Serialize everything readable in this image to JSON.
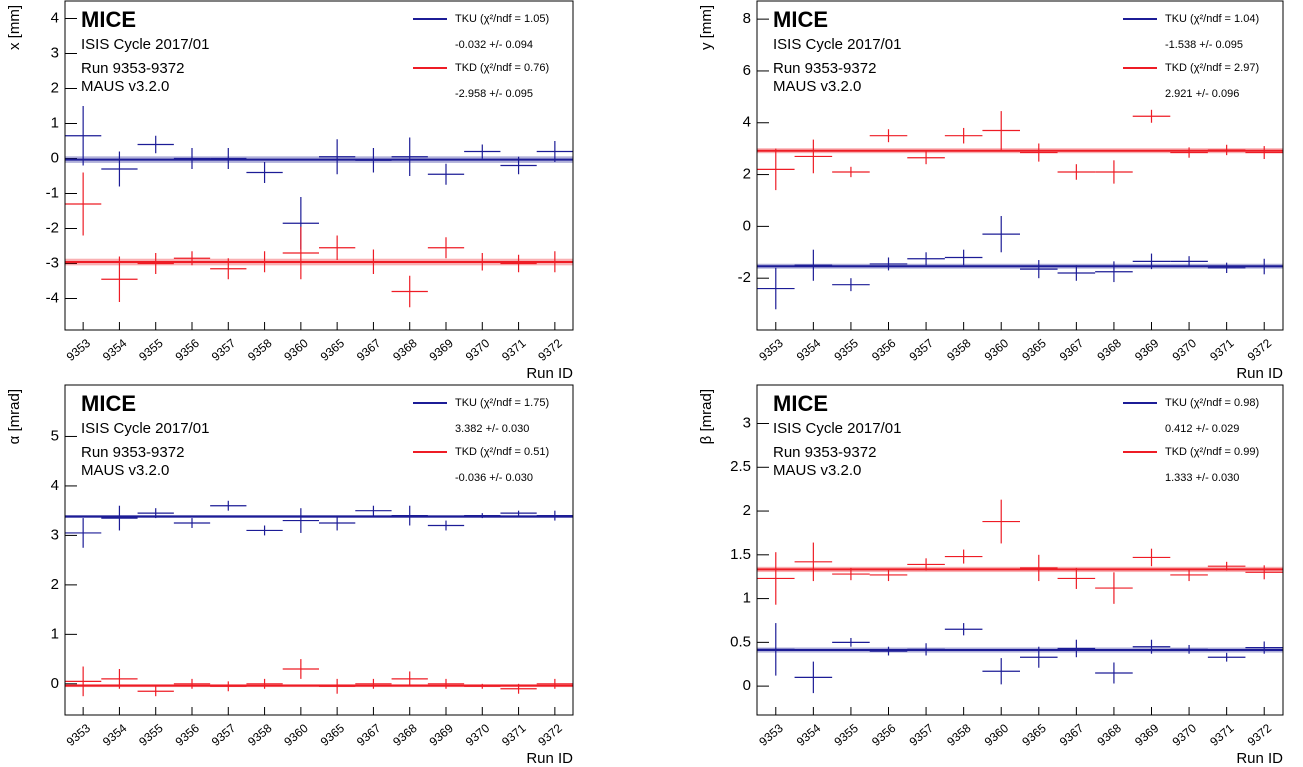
{
  "chart_data": [
    {
      "type": "errorbar",
      "y_label": "x  [mm]",
      "x_label": "Run ID",
      "annotations": [
        "MICE",
        "ISIS Cycle 2017/01",
        "Run 9353-9372",
        "MAUS v3.2.0"
      ],
      "categories": [
        "9353",
        "9354",
        "9355",
        "9356",
        "9357",
        "9358",
        "9360",
        "9365",
        "9367",
        "9368",
        "9369",
        "9370",
        "9371",
        "9372"
      ],
      "ylim": [
        -4.9,
        4.5
      ],
      "yticks": [
        -4,
        -3,
        -2,
        -1,
        0,
        1,
        2,
        3,
        4
      ],
      "series": [
        {
          "name": "TKU (χ²/ndf = 1.05)",
          "color": "#1c1c96",
          "values": [
            0.65,
            -0.3,
            0.4,
            0,
            0,
            -0.4,
            -1.85,
            0.05,
            -0.05,
            0.05,
            -0.45,
            0.2,
            -0.2,
            0.2
          ],
          "errors": [
            0.85,
            0.5,
            0.25,
            0.3,
            0.3,
            0.3,
            0.75,
            0.5,
            0.35,
            0.55,
            0.3,
            0.2,
            0.25,
            0.3
          ],
          "fit": {
            "value": -0.032,
            "error": 0.094,
            "label": "-0.032 +/- 0.094"
          }
        },
        {
          "name": "TKD (χ²/ndf = 0.76)",
          "color": "#ee1c25",
          "values": [
            -1.3,
            -3.45,
            -3.0,
            -2.85,
            -3.15,
            -2.95,
            -2.7,
            -2.55,
            -2.95,
            -3.8,
            -2.55,
            -2.95,
            -3.0,
            -2.95
          ],
          "errors": [
            0.9,
            0.65,
            0.3,
            0.2,
            0.3,
            0.3,
            0.75,
            0.35,
            0.35,
            0.45,
            0.3,
            0.25,
            0.25,
            0.3
          ],
          "fit": {
            "value": -2.958,
            "error": 0.095,
            "label": "-2.958 +/- 0.095"
          }
        }
      ]
    },
    {
      "type": "errorbar",
      "y_label": "y  [mm]",
      "x_label": "Run ID",
      "annotations": [
        "MICE",
        "ISIS Cycle 2017/01",
        "Run 9353-9372",
        "MAUS v3.2.0"
      ],
      "categories": [
        "9353",
        "9354",
        "9355",
        "9356",
        "9357",
        "9358",
        "9360",
        "9365",
        "9367",
        "9368",
        "9369",
        "9370",
        "9371",
        "9372"
      ],
      "ylim": [
        -4,
        8.7
      ],
      "yticks": [
        -2,
        0,
        2,
        4,
        6,
        8
      ],
      "series": [
        {
          "name": "TKU (χ²/ndf = 1.04)",
          "color": "#1c1c96",
          "values": [
            -2.4,
            -1.5,
            -2.25,
            -1.45,
            -1.25,
            -1.2,
            -0.3,
            -1.65,
            -1.8,
            -1.75,
            -1.35,
            -1.35,
            -1.6,
            -1.55
          ],
          "errors": [
            0.8,
            0.6,
            0.25,
            0.25,
            0.25,
            0.3,
            0.7,
            0.35,
            0.3,
            0.4,
            0.3,
            0.2,
            0.2,
            0.3
          ],
          "fit": {
            "value": -1.538,
            "error": 0.095,
            "label": "-1.538 +/- 0.095"
          }
        },
        {
          "name": "TKD (χ²/ndf = 2.97)",
          "color": "#ee1c25",
          "values": [
            2.2,
            2.7,
            2.1,
            3.5,
            2.65,
            3.5,
            3.7,
            2.85,
            2.1,
            2.1,
            4.25,
            2.85,
            2.95,
            2.85
          ],
          "errors": [
            0.8,
            0.65,
            0.2,
            0.25,
            0.25,
            0.3,
            0.75,
            0.35,
            0.3,
            0.45,
            0.25,
            0.2,
            0.2,
            0.25
          ],
          "fit": {
            "value": 2.921,
            "error": 0.096,
            "label": "2.921 +/- 0.096"
          }
        }
      ]
    },
    {
      "type": "errorbar",
      "y_label": "α  [mrad]",
      "x_label": "Run ID",
      "annotations": [
        "MICE",
        "ISIS Cycle 2017/01",
        "Run 9353-9372",
        "MAUS v3.2.0"
      ],
      "categories": [
        "9353",
        "9354",
        "9355",
        "9356",
        "9357",
        "9358",
        "9360",
        "9365",
        "9367",
        "9368",
        "9369",
        "9370",
        "9371",
        "9372"
      ],
      "ylim": [
        -0.63,
        6.04
      ],
      "yticks": [
        0,
        1,
        2,
        3,
        4,
        5
      ],
      "series": [
        {
          "name": "TKU (χ²/ndf = 1.75)",
          "color": "#1c1c96",
          "values": [
            3.05,
            3.35,
            3.45,
            3.25,
            3.6,
            3.1,
            3.3,
            3.25,
            3.5,
            3.4,
            3.2,
            3.4,
            3.45,
            3.4
          ],
          "errors": [
            0.3,
            0.25,
            0.1,
            0.1,
            0.1,
            0.1,
            0.25,
            0.15,
            0.1,
            0.2,
            0.1,
            0.05,
            0.05,
            0.1
          ],
          "fit": {
            "value": 3.382,
            "error": 0.03,
            "label": "3.382 +/- 0.030"
          }
        },
        {
          "name": "TKD (χ²/ndf = 0.51)",
          "color": "#ee1c25",
          "values": [
            0.05,
            0.1,
            -0.15,
            0,
            -0.05,
            0,
            0.3,
            -0.05,
            0,
            0.1,
            0,
            -0.05,
            -0.1,
            0
          ],
          "errors": [
            0.3,
            0.2,
            0.1,
            0.1,
            0.1,
            0.1,
            0.2,
            0.15,
            0.1,
            0.15,
            0.1,
            0.05,
            0.1,
            0.1
          ],
          "fit": {
            "value": -0.036,
            "error": 0.03,
            "label": "-0.036 +/- 0.030"
          }
        }
      ]
    },
    {
      "type": "errorbar",
      "y_label": "β  [mrad]",
      "x_label": "Run ID",
      "annotations": [
        "MICE",
        "ISIS Cycle 2017/01",
        "Run 9353-9372",
        "MAUS v3.2.0"
      ],
      "categories": [
        "9353",
        "9354",
        "9355",
        "9356",
        "9357",
        "9358",
        "9360",
        "9365",
        "9367",
        "9368",
        "9369",
        "9370",
        "9371",
        "9372"
      ],
      "ylim": [
        -0.33,
        3.44
      ],
      "yticks": [
        0,
        0.5,
        1,
        1.5,
        2,
        2.5,
        3
      ],
      "series": [
        {
          "name": "TKU (χ²/ndf = 0.98)",
          "color": "#1c1c96",
          "values": [
            0.42,
            0.1,
            0.5,
            0.4,
            0.42,
            0.65,
            0.17,
            0.33,
            0.43,
            0.15,
            0.45,
            0.42,
            0.33,
            0.44
          ],
          "errors": [
            0.3,
            0.18,
            0.05,
            0.05,
            0.07,
            0.07,
            0.15,
            0.12,
            0.1,
            0.12,
            0.08,
            0.05,
            0.05,
            0.07
          ],
          "fit": {
            "value": 0.412,
            "error": 0.029,
            "label": "0.412 +/- 0.029"
          }
        },
        {
          "name": "TKD (χ²/ndf = 0.99)",
          "color": "#ee1c25",
          "values": [
            1.23,
            1.42,
            1.28,
            1.27,
            1.39,
            1.48,
            1.88,
            1.35,
            1.23,
            1.12,
            1.47,
            1.27,
            1.37,
            1.3
          ],
          "errors": [
            0.3,
            0.22,
            0.07,
            0.07,
            0.07,
            0.08,
            0.25,
            0.15,
            0.12,
            0.18,
            0.1,
            0.07,
            0.05,
            0.08
          ],
          "fit": {
            "value": 1.333,
            "error": 0.03,
            "label": "1.333 +/- 0.030"
          }
        }
      ]
    }
  ]
}
